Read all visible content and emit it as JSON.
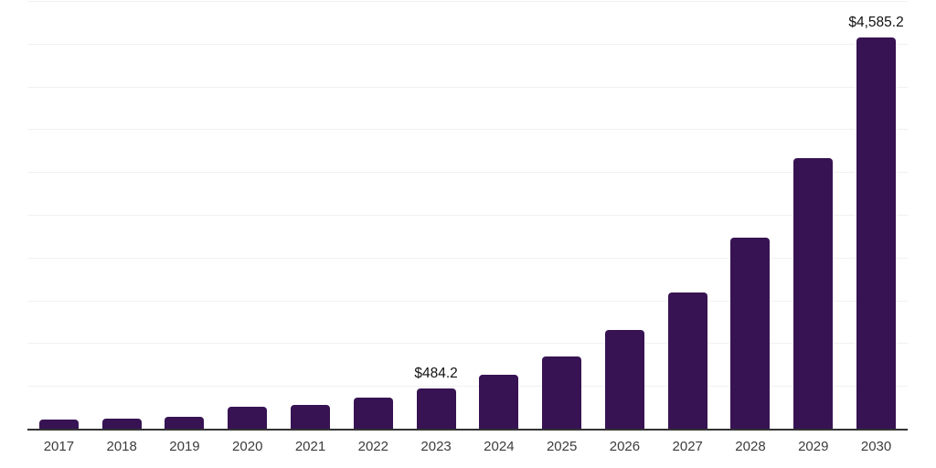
{
  "chart_data": {
    "type": "bar",
    "title": "",
    "xlabel": "",
    "ylabel": "",
    "categories": [
      "2017",
      "2018",
      "2019",
      "2020",
      "2021",
      "2022",
      "2023",
      "2024",
      "2025",
      "2026",
      "2027",
      "2028",
      "2029",
      "2030"
    ],
    "values": [
      120,
      131,
      148,
      272,
      290,
      370,
      484.2,
      640,
      855,
      1165,
      1600,
      2240,
      3175,
      4585.2
    ],
    "value_labels": [
      "",
      "",
      "",
      "",
      "",
      "",
      "$484.2",
      "",
      "",
      "",
      "",
      "",
      "",
      "$4,585.2"
    ],
    "ylim": [
      0,
      5000
    ],
    "grid_step": 500,
    "grid": true,
    "legend_position": "none",
    "y_tick_labels_visible": false,
    "colors": {
      "bar": "#371353",
      "gridline": "#f1f1f1",
      "axis_line": "#333333",
      "tick_label": "#3c3c3c",
      "value_label": "#111111"
    }
  }
}
